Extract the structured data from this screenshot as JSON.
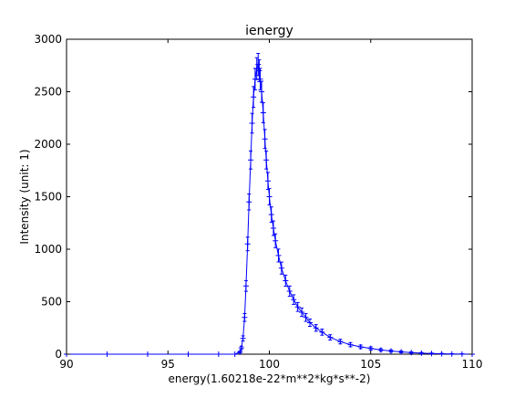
{
  "chart_data": {
    "type": "line",
    "title": "ienergy",
    "xlabel": "energy(1.60218e-22*m**2*kg*s**-2)",
    "ylabel": "Intensity (unit: 1)",
    "xlim": [
      90,
      110
    ],
    "ylim": [
      0,
      3000
    ],
    "xticks": [
      90,
      95,
      100,
      105,
      110
    ],
    "xtick_labels": [
      "90",
      "95",
      "100",
      "105",
      "110"
    ],
    "yticks": [
      0,
      500,
      1000,
      1500,
      2000,
      2500,
      3000
    ],
    "ytick_labels": [
      "0",
      "500",
      "1000",
      "1500",
      "2000",
      "2500",
      "3000"
    ],
    "grid": false,
    "markers": "plus-with-error-bars",
    "series": [
      {
        "color": "#0000ff",
        "x": [
          90.0,
          92.0,
          94.0,
          96.0,
          97.5,
          98.3,
          98.55,
          98.62,
          98.7,
          98.78,
          98.85,
          98.93,
          99.0,
          99.08,
          99.15,
          99.22,
          99.3,
          99.38,
          99.45,
          99.5,
          99.55,
          99.62,
          99.7,
          99.78,
          99.85,
          99.93,
          100.0,
          100.1,
          100.2,
          100.3,
          100.45,
          100.6,
          100.8,
          101.0,
          101.2,
          101.4,
          101.6,
          101.8,
          102.0,
          102.3,
          102.6,
          103.0,
          103.5,
          104.0,
          104.5,
          105.0,
          105.5,
          106.0,
          106.5,
          107.0,
          107.5,
          108.0,
          108.5,
          109.0,
          109.5,
          110.0
        ],
        "y": [
          0,
          0,
          0,
          0,
          0,
          0,
          20,
          60,
          150,
          350,
          650,
          1050,
          1450,
          1850,
          2200,
          2450,
          2620,
          2720,
          2760,
          2700,
          2620,
          2500,
          2300,
          2050,
          1850,
          1650,
          1500,
          1330,
          1200,
          1080,
          940,
          820,
          700,
          600,
          520,
          450,
          400,
          350,
          300,
          250,
          210,
          160,
          120,
          90,
          70,
          55,
          40,
          30,
          22,
          15,
          10,
          6,
          4,
          2,
          1,
          0
        ]
      }
    ]
  }
}
